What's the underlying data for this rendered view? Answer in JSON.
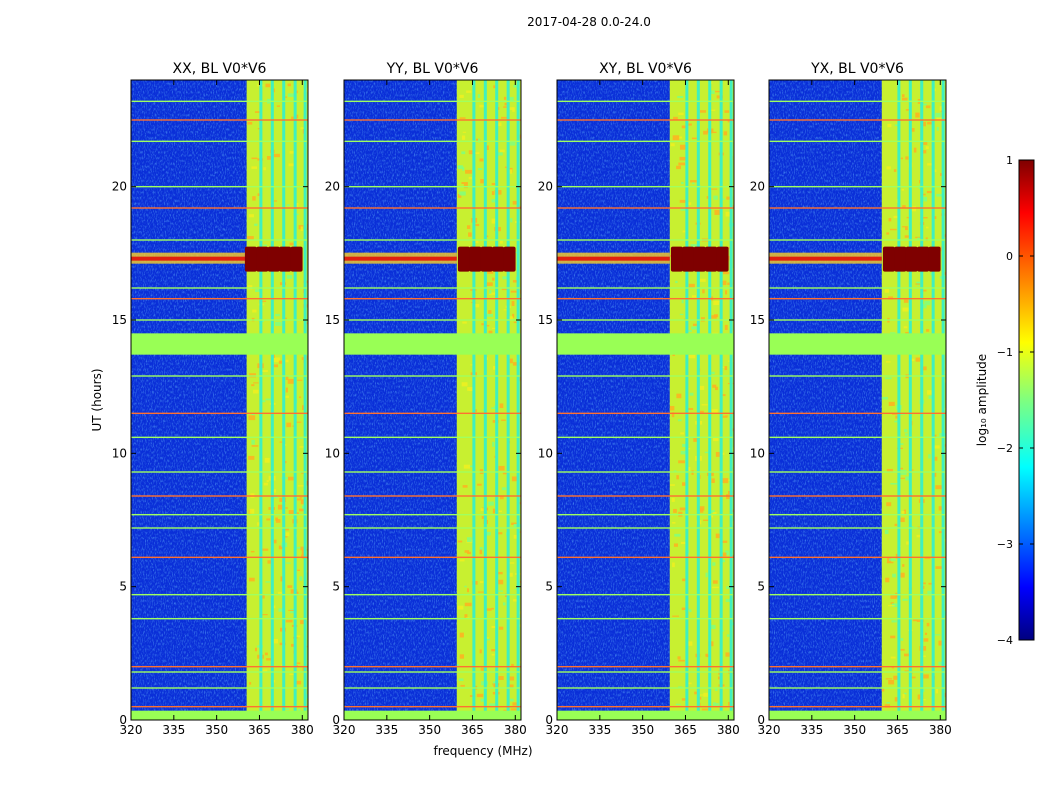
{
  "chart_data": {
    "type": "heatmap",
    "suptitle": "2017-04-28 0.0-24.0",
    "xlabel": "frequency (MHz)",
    "ylabel": "UT (hours)",
    "xlim": [
      320,
      382
    ],
    "ylim": [
      0,
      24
    ],
    "xticks": [
      320,
      335,
      350,
      365,
      380
    ],
    "yticks": [
      0,
      5,
      10,
      15,
      20
    ],
    "panels": [
      {
        "title": "XX, BL V0*V6",
        "band_start_mhz": 360.5,
        "band_peak_ut": 17.3
      },
      {
        "title": "YY, BL V0*V6",
        "band_start_mhz": 359.5,
        "band_peak_ut": 17.3
      },
      {
        "title": "XY, BL V0*V6",
        "band_start_mhz": 359.5,
        "band_peak_ut": 17.3
      },
      {
        "title": "YX, BL V0*V6",
        "band_start_mhz": 359.5,
        "band_peak_ut": 17.3
      }
    ],
    "colorbar": {
      "label": "log₁₀ amplitude",
      "range": [
        -4,
        1
      ],
      "ticks": [
        "1",
        "0",
        "−1",
        "−2",
        "−3",
        "−4"
      ],
      "tick_values": [
        1,
        0,
        -1,
        -2,
        -3,
        -4
      ],
      "colormap": "jet"
    },
    "flagged_ut_ranges": [
      [
        0.0,
        0.35
      ],
      [
        13.7,
        14.5
      ]
    ],
    "rfi_ut_lines": [
      0.5,
      1.2,
      1.8,
      2.0,
      3.8,
      4.7,
      6.1,
      7.2,
      7.7,
      8.4,
      9.3,
      10.6,
      11.5,
      12.9,
      15.0,
      15.8,
      16.2,
      18.0,
      19.2,
      20.0,
      21.7,
      22.5,
      23.2
    ]
  }
}
